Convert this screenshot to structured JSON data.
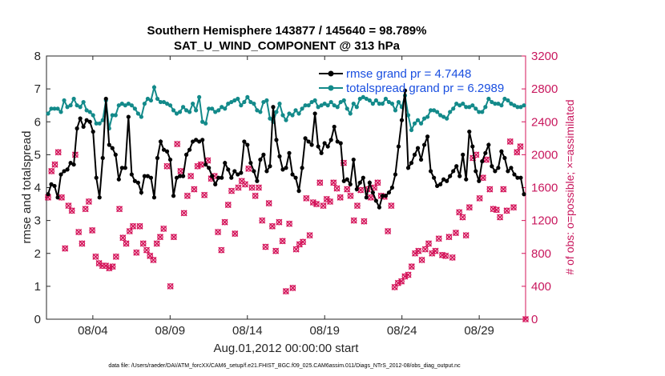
{
  "chart_data": {
    "type": "line",
    "title": "Southern Hemisphere 143877 / 145640 = 98.789%",
    "subtitle": "SAT_U_WIND_COMPONENT @ 313 hPa",
    "xlabel": "Aug.01,2012 00:00:00 start",
    "ylabel_left": "rmse and totalspread",
    "ylabel_right": "# of obs: o=possible; ×=assimilated",
    "footnote": "data file: /Users/raeder/DAI/ATM_forcXX/CAM6_setup/f.e21.FHIST_BGC.f09_025.CAM6assim.011/Diags_NTrS_2012-08/obs_diag_output.nc",
    "x_tick_labels": [
      "08/04",
      "08/09",
      "08/14",
      "08/19",
      "08/24",
      "08/29"
    ],
    "x_tick_days": [
      4,
      9,
      14,
      19,
      24,
      29
    ],
    "xlim_days": [
      1.0,
      32.0
    ],
    "ylim_left": [
      0,
      8
    ],
    "y_ticks_left": [
      "0",
      "1",
      "2",
      "3",
      "4",
      "5",
      "6",
      "7",
      "8"
    ],
    "ylim_right": [
      0,
      3200
    ],
    "y_ticks_right": [
      "0",
      "400",
      "800",
      "1200",
      "1600",
      "2000",
      "2400",
      "2800",
      "3200"
    ],
    "colors": {
      "rmse": "#000000",
      "spread": "#138a8a",
      "obs": "#d4145a",
      "legend_text": "#1a4fe0"
    },
    "legend_position": "top-right",
    "series": [
      {
        "name": "rmse grand pr = 4.7448",
        "axis": "left",
        "values": [
          3.8,
          4.1,
          4.05,
          3.7,
          4.4,
          4.5,
          4.55,
          4.75,
          4.7,
          5.8,
          6.1,
          5.85,
          6.05,
          6.0,
          5.7,
          4.3,
          3.7,
          4.9,
          6.7,
          5.3,
          5.2,
          5.0,
          4.25,
          4.6,
          4.6,
          6.15,
          4.4,
          4.2,
          4.15,
          3.85,
          4.35,
          4.35,
          4.3,
          3.7,
          4.9,
          5.4,
          5.15,
          5.1,
          4.85,
          3.75,
          4.3,
          4.35,
          4.35,
          5.0,
          5.15,
          5.4,
          5.45,
          5.4,
          5.45,
          4.7,
          4.6,
          4.35,
          4.1,
          4.3,
          4.3,
          4.75,
          4.55,
          4.3,
          4.5,
          4.4,
          4.45,
          5.4,
          5.3,
          4.75,
          4.5,
          4.2,
          4.85,
          5.0,
          4.5,
          4.65,
          6.45,
          5.45,
          4.95,
          4.55,
          4.6,
          5.05,
          4.4,
          4.3,
          3.9,
          4.6,
          5.5,
          5.4,
          5.3,
          6.25,
          5.25,
          5.05,
          5.35,
          5.25,
          5.45,
          5.85,
          5.4,
          5.35,
          4.2,
          4.25,
          4.1,
          4.85,
          3.95,
          4.15,
          4.3,
          3.7,
          4.15,
          3.85,
          3.6,
          3.4,
          3.75,
          3.75,
          3.85,
          4.0,
          4.4,
          5.25,
          6.05,
          6.95,
          4.6,
          4.75,
          5.0,
          5.2,
          4.85,
          5.3,
          5.55,
          4.5,
          4.3,
          4.05,
          4.1,
          4.25,
          4.2,
          4.35,
          4.5,
          4.65,
          4.35,
          5.0,
          4.25,
          5.7,
          5.25,
          4.5,
          4.2,
          4.8,
          5.05,
          5.3,
          4.65,
          4.5,
          4.6,
          5.1,
          4.9,
          4.5,
          4.6,
          4.4,
          4.3,
          4.3,
          3.8
        ]
      },
      {
        "name": "totalspread grand pr = 6.2989",
        "axis": "left",
        "values": [
          6.25,
          6.4,
          6.4,
          6.4,
          6.3,
          6.65,
          6.45,
          6.5,
          6.7,
          6.5,
          6.45,
          6.6,
          6.35,
          6.3,
          6.2,
          5.95,
          5.95,
          6.05,
          6.65,
          5.8,
          6.2,
          6.2,
          6.5,
          6.55,
          6.5,
          6.55,
          6.5,
          6.4,
          6.25,
          6.15,
          6.55,
          6.7,
          6.65,
          7.05,
          6.7,
          6.6,
          6.6,
          6.55,
          6.5,
          6.35,
          6.25,
          6.3,
          6.45,
          6.35,
          6.3,
          6.55,
          6.35,
          6.75,
          6.0,
          5.95,
          6.4,
          6.4,
          6.3,
          6.35,
          6.45,
          6.4,
          6.55,
          6.6,
          6.65,
          6.7,
          6.5,
          6.6,
          6.75,
          6.6,
          6.55,
          6.35,
          6.3,
          6.6,
          6.65,
          6.1,
          6.0,
          6.3,
          6.55,
          6.2,
          6.05,
          6.25,
          6.2,
          6.35,
          6.25,
          6.4,
          6.5,
          6.5,
          6.6,
          6.65,
          6.45,
          6.5,
          6.55,
          6.5,
          6.6,
          6.5,
          6.45,
          6.6,
          6.65,
          6.4,
          6.25,
          6.55,
          6.45,
          6.7,
          6.75,
          6.7,
          6.65,
          6.55,
          6.65,
          6.55,
          6.55,
          6.7,
          6.6,
          6.55,
          6.35,
          6.6,
          6.45,
          6.8,
          6.2,
          5.75,
          5.95,
          6.05,
          5.95,
          6.1,
          6.15,
          6.35,
          6.35,
          6.3,
          6.2,
          6.15,
          6.1,
          6.3,
          6.4,
          6.55,
          6.5,
          6.55,
          6.45,
          6.45,
          6.5,
          6.4,
          6.3,
          6.3,
          6.45,
          6.7,
          6.6,
          6.55,
          6.55,
          6.5,
          6.7,
          6.65,
          6.55,
          6.5,
          6.45,
          6.45,
          6.5
        ]
      },
      {
        "name": "obs possible / assimilated",
        "axis": "right",
        "values": [
          1480,
          1800,
          1880,
          2030,
          1480,
          860,
          1380,
          1320,
          2000,
          1060,
          920,
          1340,
          1430,
          1080,
          760,
          680,
          650,
          650,
          620,
          640,
          760,
          1340,
          990,
          920,
          1070,
          1130,
          810,
          1130,
          920,
          840,
          770,
          720,
          920,
          1000,
          1100,
          1860,
          400,
          1000,
          2130,
          1800,
          1290,
          1500,
          1740,
          1580,
          1860,
          1880,
          1510,
          1930,
          1710,
          1740,
          1060,
          840,
          1180,
          1390,
          1560,
          1040,
          1600,
          1680,
          1640,
          1830,
          1600,
          1500,
          1600,
          1200,
          880,
          1410,
          1130,
          830,
          1180,
          950,
          340,
          1160,
          380,
          850,
          910,
          940,
          1470,
          1020,
          1420,
          1400,
          1660,
          1380,
          1460,
          1430,
          1660,
          1590,
          1480,
          1900,
          1580,
          1500,
          1200,
          1380,
          1570,
          1190,
          1580,
          1480,
          1600,
          1660,
          1500,
          1490,
          1070,
          1380,
          390,
          440,
          460,
          520,
          540,
          640,
          800,
          830,
          720,
          850,
          920,
          800,
          830,
          980,
          780,
          770,
          1000,
          750,
          1050,
          1300,
          1240,
          1020,
          1360,
          1960,
          2000,
          1470,
          1720,
          1940,
          1580,
          1340,
          1330,
          1240,
          1580,
          1320,
          2160,
          1360,
          2030,
          2100,
          0
        ]
      }
    ]
  }
}
